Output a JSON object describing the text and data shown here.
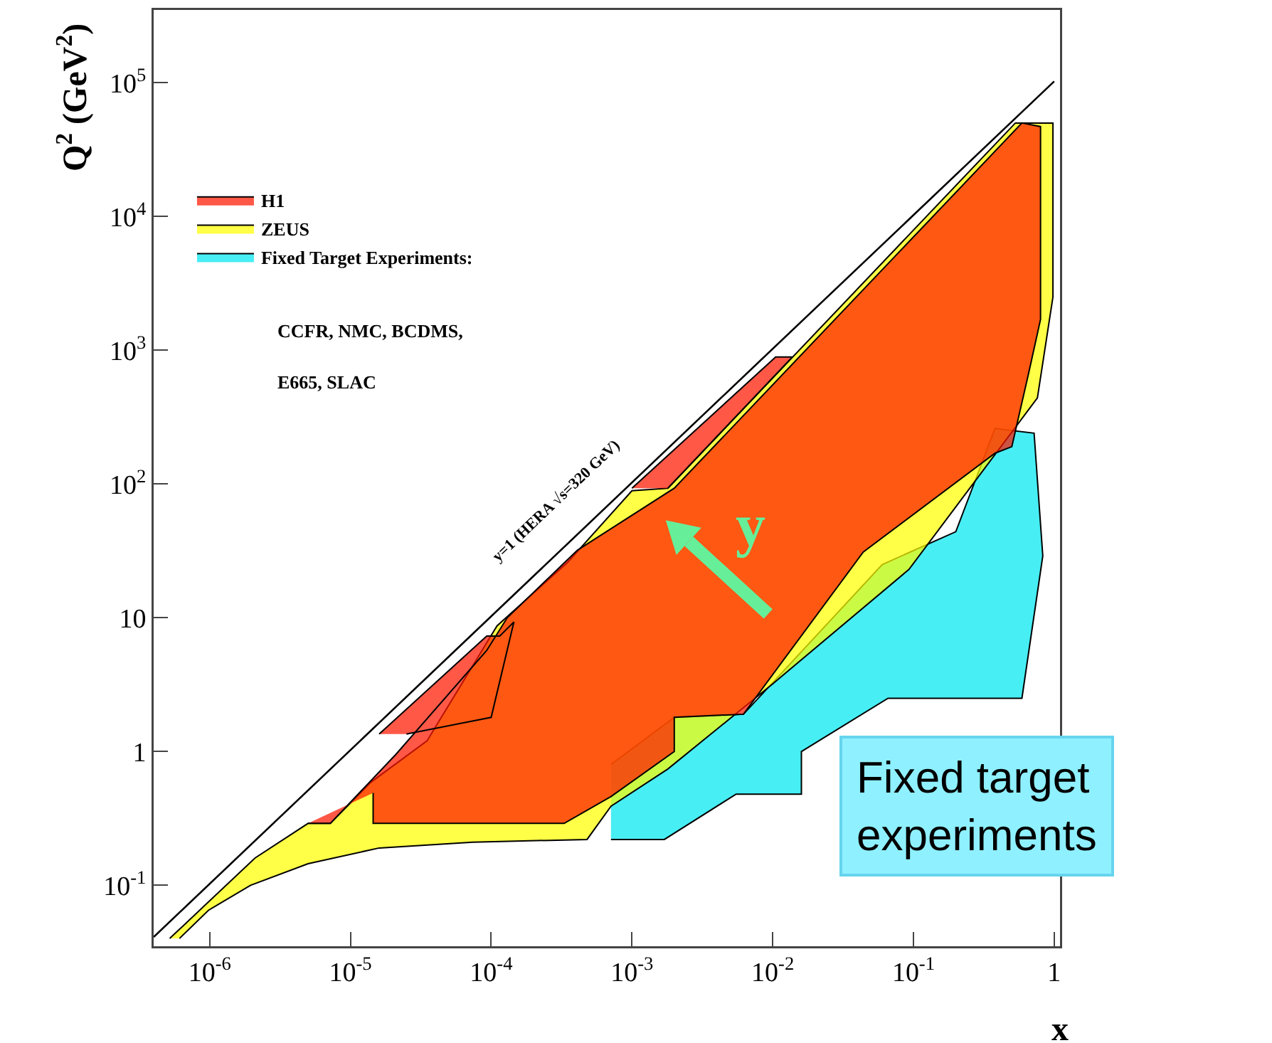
{
  "chart_data": {
    "type": "area",
    "xlabel": "x",
    "ylabel": "Q$^{2}$ (GeV$^{2}$)",
    "log": "xy",
    "grid": false,
    "legend": "top left",
    "xlim": [
      4e-07,
      1.1
    ],
    "ylim": [
      0.035,
      350000
    ],
    "xticks": [
      {
        "value": 1e-06,
        "label": "10$^{-6}$"
      },
      {
        "value": 1e-05,
        "label": "10$^{-5}$"
      },
      {
        "value": 0.0001,
        "label": "10$^{-4}$"
      },
      {
        "value": 0.001,
        "label": "10$^{-3}$"
      },
      {
        "value": 0.01,
        "label": "10$^{-2}$"
      },
      {
        "value": 0.1,
        "label": "10$^{-1}$"
      },
      1
    ],
    "yticks": [
      {
        "value": 0.1,
        "label": "10$^{-1}$"
      },
      1,
      10,
      {
        "value": 100,
        "label": "10$^{2}$"
      },
      {
        "value": 1000,
        "label": "10$^{3}$"
      },
      {
        "value": 10000,
        "label": "10$^{4}$"
      },
      {
        "value": 100000,
        "label": "10$^{5}$"
      }
    ],
    "series": [
      {
        "type": "line",
        "color": "#000000",
        "x": [
          4e-07,
          1
        ],
        "values": [
          0.041,
          102400
        ]
      },
      {
        "name": "Fixed Target Experiments:",
        "color": "#00e8f0",
        "x": [
          0.00071,
          0.0017,
          0.0055,
          0.016,
          0.016,
          0.066,
          0.59,
          0.83,
          0.72,
          0.38,
          0.2,
          0.06,
          0.0062,
          0.002,
          0.00071
        ],
        "values": [
          0.22,
          0.22,
          0.48,
          0.48,
          1.0,
          2.5,
          2.5,
          29,
          240,
          260,
          44,
          25,
          1.9,
          1.8,
          0.8
        ]
      },
      {
        "name": "ZEUS",
        "color": "#ffff00",
        "x": [
          5.2e-07,
          2.1e-06,
          5e-06,
          7.2e-06,
          1.4e-05,
          3.5e-05,
          0.00011,
          0.00035,
          0.001,
          0.0018,
          0.53,
          0.98,
          0.98,
          0.76,
          0.093,
          0.01,
          0.0018,
          0.00071,
          0.00048,
          7.4e-05,
          1.6e-05,
          5e-06,
          1.95e-06,
          9.8e-07,
          6.1e-07
        ],
        "values": [
          0.04,
          0.16,
          0.29,
          0.29,
          0.59,
          1.2,
          8.7,
          26,
          89,
          93,
          50000,
          50000,
          2500,
          440,
          23,
          3.2,
          0.74,
          0.39,
          0.22,
          0.21,
          0.19,
          0.145,
          0.1,
          0.065,
          0.04
        ]
      },
      {
        "name": "H1",
        "color": "#ff1800",
        "x": [
          5e-06,
          7.2e-06,
          2.1e-05,
          9.3e-05,
          0.00013,
          0.00041,
          0.002,
          0.59,
          0.8,
          0.8,
          0.66,
          0.5,
          0.38,
          0.044,
          0.0062,
          0.002,
          0.002,
          0.00071,
          0.00033,
          1.45e-05,
          1.45e-05,
          null,
          1.6e-05,
          9.3e-05,
          0.000115,
          0.000145,
          0.0001,
          2.5e-05,
          null,
          0.001,
          0.0105,
          0.0138,
          0.0018
        ],
        "values": [
          0.29,
          0.29,
          0.95,
          5.7,
          10,
          32,
          93,
          50000,
          47000,
          1700,
          680,
          190,
          170,
          31,
          1.9,
          1.8,
          1.0,
          0.46,
          0.29,
          0.29,
          0.49,
          null,
          1.35,
          7.3,
          7.3,
          9.3,
          1.8,
          1.35,
          null,
          93,
          890,
          890,
          93
        ]
      }
    ],
    "annotations": [
      "CCFR, NMC, BCDMS,",
      "E665, SLAC",
      "y=1 (HERA √s=320 GeV)",
      "y",
      "Fixed target\nexperiments"
    ]
  }
}
